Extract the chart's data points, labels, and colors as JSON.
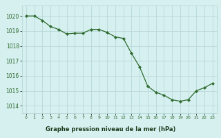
{
  "x": [
    0,
    1,
    2,
    3,
    4,
    5,
    6,
    7,
    8,
    9,
    10,
    11,
    12,
    13,
    14,
    15,
    16,
    17,
    18,
    19,
    20,
    21,
    22,
    23
  ],
  "y": [
    1020.0,
    1020.0,
    1019.7,
    1019.3,
    1019.1,
    1018.8,
    1018.85,
    1018.85,
    1019.1,
    1019.1,
    1018.9,
    1018.6,
    1018.5,
    1017.5,
    1016.6,
    1015.3,
    1014.9,
    1014.7,
    1014.4,
    1014.3,
    1014.4,
    1015.0,
    1015.2,
    1015.5
  ],
  "line_color": "#2d6a2d",
  "marker_color": "#2d6a2d",
  "bg_color": "#d6f0f0",
  "grid_color": "#b8d8d8",
  "xlabel": "Graphe pression niveau de la mer (hPa)",
  "xlabel_color": "#1a3a1a",
  "xlabel_bg": "#6aaa6a",
  "tick_color": "#2d6a2d",
  "ylim_min": 1013.5,
  "ylim_max": 1020.7,
  "yticks": [
    1014,
    1015,
    1016,
    1017,
    1018,
    1019,
    1020
  ],
  "xticks": [
    0,
    1,
    2,
    3,
    4,
    5,
    6,
    7,
    8,
    9,
    10,
    11,
    12,
    13,
    14,
    15,
    16,
    17,
    18,
    19,
    20,
    21,
    22,
    23
  ],
  "xlim_min": -0.5,
  "xlim_max": 23.5
}
